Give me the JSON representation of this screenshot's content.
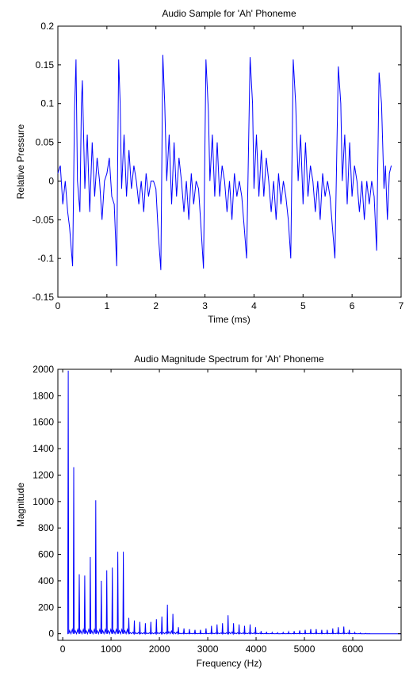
{
  "figure": {
    "background": "#ffffff",
    "line_color": "#0000ff",
    "axes_color": "#000000"
  },
  "chart_data": [
    {
      "type": "line",
      "title": "Audio Sample for 'Ah' Phoneme",
      "xlabel": "Time (ms)",
      "ylabel": "Relative Pressure",
      "xlim": [
        0,
        7
      ],
      "ylim": [
        -0.15,
        0.2
      ],
      "xticks": [
        0,
        1,
        2,
        3,
        4,
        5,
        6,
        7
      ],
      "xtick_labels": [
        "0",
        "1",
        "2",
        "3",
        "4",
        "5",
        "6",
        "7"
      ],
      "yticks": [
        -0.15,
        -0.1,
        -0.05,
        0,
        0.05,
        0.1,
        0.15,
        0.2
      ],
      "ytick_labels": [
        "-0.15",
        "-0.1",
        "-0.05",
        "0",
        "0.05",
        "0.1",
        "0.15",
        "0.2"
      ],
      "grid": false,
      "series": [
        {
          "color": "#0000ff",
          "x": [
            0.0,
            0.05,
            0.1,
            0.15,
            0.2,
            0.24,
            0.3,
            0.34,
            0.37,
            0.4,
            0.45,
            0.48,
            0.5,
            0.55,
            0.6,
            0.65,
            0.7,
            0.75,
            0.8,
            0.85,
            0.9,
            0.95,
            1.0,
            1.05,
            1.1,
            1.15,
            1.2,
            1.24,
            1.27,
            1.3,
            1.35,
            1.4,
            1.45,
            1.5,
            1.55,
            1.6,
            1.65,
            1.7,
            1.75,
            1.8,
            1.85,
            1.9,
            1.95,
            2.0,
            2.05,
            2.1,
            2.14,
            2.18,
            2.22,
            2.27,
            2.32,
            2.37,
            2.42,
            2.47,
            2.52,
            2.57,
            2.62,
            2.67,
            2.72,
            2.77,
            2.82,
            2.87,
            2.92,
            2.97,
            3.02,
            3.07,
            3.1,
            3.15,
            3.2,
            3.25,
            3.3,
            3.35,
            3.4,
            3.45,
            3.5,
            3.55,
            3.6,
            3.65,
            3.7,
            3.75,
            3.8,
            3.85,
            3.92,
            3.97,
            4.0,
            4.05,
            4.1,
            4.15,
            4.2,
            4.25,
            4.3,
            4.35,
            4.4,
            4.45,
            4.5,
            4.55,
            4.6,
            4.65,
            4.7,
            4.75,
            4.8,
            4.85,
            4.9,
            4.95,
            5.0,
            5.05,
            5.1,
            5.15,
            5.2,
            5.25,
            5.3,
            5.35,
            5.4,
            5.45,
            5.5,
            5.55,
            5.6,
            5.65,
            5.72,
            5.77,
            5.8,
            5.85,
            5.9,
            5.95,
            6.0,
            6.05,
            6.1,
            6.15,
            6.2,
            6.25,
            6.3,
            6.35,
            6.4,
            6.45,
            6.5,
            6.55,
            6.6,
            6.65,
            6.68,
            6.72,
            6.76,
            6.8
          ],
          "y": [
            0.01,
            0.02,
            -0.03,
            0.0,
            -0.04,
            -0.06,
            -0.11,
            0.09,
            0.157,
            0.0,
            -0.04,
            0.1,
            0.13,
            -0.01,
            0.06,
            -0.04,
            0.05,
            -0.02,
            0.03,
            0.0,
            -0.05,
            0.0,
            0.01,
            0.03,
            -0.02,
            -0.03,
            -0.11,
            0.157,
            0.1,
            -0.01,
            0.06,
            -0.02,
            0.04,
            -0.01,
            0.02,
            0.0,
            -0.03,
            0.0,
            -0.04,
            0.01,
            -0.02,
            0.0,
            0.0,
            -0.01,
            -0.07,
            -0.115,
            0.163,
            0.1,
            0.0,
            0.06,
            -0.03,
            0.05,
            -0.02,
            0.03,
            0.0,
            -0.04,
            0.0,
            -0.05,
            0.01,
            -0.03,
            0.0,
            -0.01,
            -0.06,
            -0.113,
            0.157,
            0.09,
            0.0,
            0.06,
            -0.02,
            0.05,
            -0.02,
            0.02,
            0.0,
            -0.04,
            0.0,
            -0.05,
            0.01,
            -0.02,
            0.0,
            -0.02,
            -0.06,
            -0.1,
            0.16,
            0.1,
            -0.01,
            0.06,
            -0.02,
            0.04,
            -0.02,
            0.03,
            0.0,
            -0.04,
            0.0,
            -0.05,
            0.01,
            -0.03,
            0.0,
            -0.02,
            -0.05,
            -0.1,
            0.157,
            0.1,
            0.0,
            0.06,
            -0.03,
            0.05,
            -0.02,
            0.02,
            0.0,
            -0.04,
            0.0,
            -0.05,
            0.01,
            -0.02,
            0.0,
            -0.02,
            -0.06,
            -0.1,
            0.148,
            0.1,
            0.0,
            0.06,
            -0.03,
            0.05,
            -0.02,
            0.02,
            0.0,
            -0.04,
            0.0,
            -0.05,
            0.0,
            -0.03,
            0.0,
            -0.02,
            -0.09,
            0.14,
            0.1,
            -0.01,
            0.02,
            -0.05,
            0.01,
            0.02
          ]
        }
      ]
    },
    {
      "type": "line",
      "title": "Audio Magnitude Spectrum for 'Ah' Phoneme",
      "xlabel": "Frequency (Hz)",
      "ylabel": "Magnitude",
      "xlim": [
        -100,
        7000
      ],
      "ylim": [
        -50,
        2000
      ],
      "xticks": [
        0,
        1000,
        2000,
        3000,
        4000,
        5000,
        6000
      ],
      "xtick_labels": [
        "0",
        "1000",
        "2000",
        "3000",
        "4000",
        "5000",
        "6000"
      ],
      "yticks": [
        0,
        200,
        400,
        600,
        800,
        1000,
        1200,
        1400,
        1600,
        1800,
        2000
      ],
      "ytick_labels": [
        "0",
        "200",
        "400",
        "600",
        "800",
        "1000",
        "1200",
        "1400",
        "1600",
        "1800",
        "2000"
      ],
      "grid": false,
      "series": [
        {
          "color": "#0000ff",
          "fundamental_hz": 114,
          "harmonics": [
            {
              "f": 114,
              "m": 1990
            },
            {
              "f": 228,
              "m": 1260
            },
            {
              "f": 342,
              "m": 450
            },
            {
              "f": 456,
              "m": 440
            },
            {
              "f": 570,
              "m": 580
            },
            {
              "f": 684,
              "m": 1010
            },
            {
              "f": 798,
              "m": 400
            },
            {
              "f": 912,
              "m": 480
            },
            {
              "f": 1026,
              "m": 500
            },
            {
              "f": 1140,
              "m": 620
            },
            {
              "f": 1254,
              "m": 620
            },
            {
              "f": 1368,
              "m": 120
            },
            {
              "f": 1482,
              "m": 100
            },
            {
              "f": 1596,
              "m": 90
            },
            {
              "f": 1710,
              "m": 80
            },
            {
              "f": 1824,
              "m": 90
            },
            {
              "f": 1938,
              "m": 110
            },
            {
              "f": 2052,
              "m": 130
            },
            {
              "f": 2166,
              "m": 220
            },
            {
              "f": 2280,
              "m": 150
            },
            {
              "f": 2394,
              "m": 50
            },
            {
              "f": 2508,
              "m": 40
            },
            {
              "f": 2622,
              "m": 35
            },
            {
              "f": 2736,
              "m": 30
            },
            {
              "f": 2850,
              "m": 30
            },
            {
              "f": 2964,
              "m": 40
            },
            {
              "f": 3078,
              "m": 60
            },
            {
              "f": 3192,
              "m": 70
            },
            {
              "f": 3306,
              "m": 80
            },
            {
              "f": 3420,
              "m": 140
            },
            {
              "f": 3534,
              "m": 80
            },
            {
              "f": 3648,
              "m": 70
            },
            {
              "f": 3762,
              "m": 60
            },
            {
              "f": 3876,
              "m": 70
            },
            {
              "f": 3990,
              "m": 50
            },
            {
              "f": 4104,
              "m": 20
            },
            {
              "f": 4218,
              "m": 15
            },
            {
              "f": 4332,
              "m": 10
            },
            {
              "f": 4446,
              "m": 8
            },
            {
              "f": 4560,
              "m": 10
            },
            {
              "f": 4674,
              "m": 15
            },
            {
              "f": 4788,
              "m": 20
            },
            {
              "f": 4902,
              "m": 25
            },
            {
              "f": 5016,
              "m": 30
            },
            {
              "f": 5130,
              "m": 35
            },
            {
              "f": 5244,
              "m": 35
            },
            {
              "f": 5358,
              "m": 30
            },
            {
              "f": 5472,
              "m": 30
            },
            {
              "f": 5586,
              "m": 40
            },
            {
              "f": 5700,
              "m": 50
            },
            {
              "f": 5814,
              "m": 55
            },
            {
              "f": 5928,
              "m": 30
            },
            {
              "f": 6042,
              "m": 10
            },
            {
              "f": 6156,
              "m": 5
            },
            {
              "f": 6270,
              "m": 3
            }
          ],
          "baseline_after_hz": 6300,
          "baseline_value": 0
        }
      ]
    }
  ]
}
